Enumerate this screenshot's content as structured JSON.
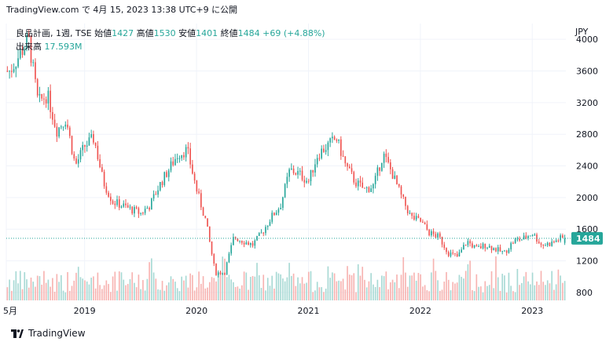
{
  "header": {
    "text": "TradingView.com で 4月 15, 2023 13:38 UTC+9 に公開"
  },
  "legend": {
    "symbol": "良品計画, 1週, TSE",
    "open_label": "始値",
    "open_value": "1427",
    "high_label": "高値",
    "high_value": "1530",
    "low_label": "安値",
    "low_value": "1401",
    "close_label": "終値",
    "close_value": "1484",
    "change": "+69 (+4.88%)",
    "volume_label": "出来高",
    "volume_value": "17.593M"
  },
  "currency": "JPY",
  "last_price_label": "1484",
  "footer": {
    "brand": "TradingView"
  },
  "colors": {
    "up": "#26a69a",
    "down": "#ef5350",
    "up_vol": "#a7d9d4",
    "down_vol": "#f7b3b1",
    "grid": "#f0f3fa"
  },
  "chart_data": {
    "type": "candlestick",
    "interval": "1週",
    "currency": "JPY",
    "y_ticks": [
      800,
      1200,
      1600,
      2000,
      2400,
      2800,
      3200,
      3600,
      4000
    ],
    "x_ticks": [
      "5月",
      "2019",
      "2020",
      "2021",
      "2022",
      "2023"
    ],
    "ylim": [
      700,
      4200
    ],
    "last_price": 1484,
    "price_path": [
      [
        "2018-05",
        3600
      ],
      [
        "2018-06",
        3800
      ],
      [
        "2018-07",
        4000
      ],
      [
        "2018-08",
        3200
      ],
      [
        "2018-09",
        3300
      ],
      [
        "2018-10",
        2850
      ],
      [
        "2018-11",
        3000
      ],
      [
        "2018-12",
        2400
      ],
      [
        "2019-01",
        2650
      ],
      [
        "2019-02",
        2750
      ],
      [
        "2019-03",
        2200
      ],
      [
        "2019-04",
        1950
      ],
      [
        "2019-05",
        1900
      ],
      [
        "2019-06",
        1850
      ],
      [
        "2019-07",
        1800
      ],
      [
        "2019-08",
        1900
      ],
      [
        "2019-09",
        2150
      ],
      [
        "2019-10",
        2350
      ],
      [
        "2019-11",
        2550
      ],
      [
        "2019-12",
        2600
      ],
      [
        "2020-01",
        2100
      ],
      [
        "2020-02",
        1700
      ],
      [
        "2020-03",
        1050
      ],
      [
        "2020-04",
        1050
      ],
      [
        "2020-05",
        1500
      ],
      [
        "2020-06",
        1450
      ],
      [
        "2020-07",
        1400
      ],
      [
        "2020-08",
        1550
      ],
      [
        "2020-09",
        1750
      ],
      [
        "2020-10",
        1900
      ],
      [
        "2020-11",
        2350
      ],
      [
        "2020-12",
        2300
      ],
      [
        "2021-01",
        2200
      ],
      [
        "2021-02",
        2550
      ],
      [
        "2021-03",
        2650
      ],
      [
        "2021-04",
        2750
      ],
      [
        "2021-05",
        2400
      ],
      [
        "2021-06",
        2200
      ],
      [
        "2021-07",
        2100
      ],
      [
        "2021-08",
        2150
      ],
      [
        "2021-09",
        2550
      ],
      [
        "2021-10",
        2300
      ],
      [
        "2021-11",
        2000
      ],
      [
        "2021-12",
        1750
      ],
      [
        "2022-01",
        1700
      ],
      [
        "2022-02",
        1550
      ],
      [
        "2022-03",
        1500
      ],
      [
        "2022-04",
        1300
      ],
      [
        "2022-05",
        1250
      ],
      [
        "2022-06",
        1450
      ],
      [
        "2022-07",
        1350
      ],
      [
        "2022-08",
        1400
      ],
      [
        "2022-09",
        1350
      ],
      [
        "2022-10",
        1300
      ],
      [
        "2022-11",
        1450
      ],
      [
        "2022-12",
        1480
      ],
      [
        "2023-01",
        1550
      ],
      [
        "2023-02",
        1400
      ],
      [
        "2023-03",
        1420
      ],
      [
        "2023-04",
        1484
      ]
    ]
  }
}
